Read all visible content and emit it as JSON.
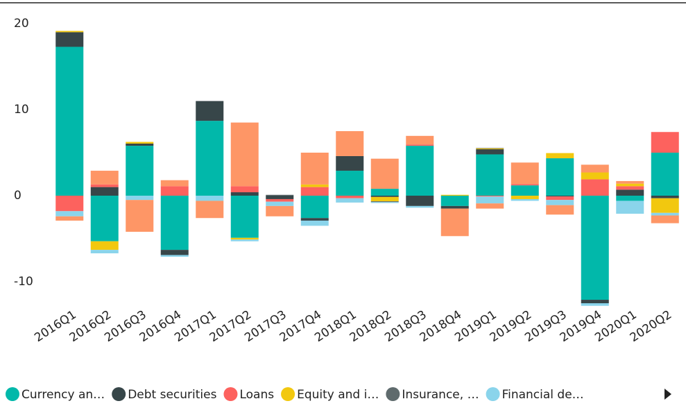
{
  "chart_data": {
    "type": "stacked_bar",
    "categories": [
      "2016Q1",
      "2016Q2",
      "2016Q3",
      "2016Q4",
      "2017Q1",
      "2017Q2",
      "2017Q3",
      "2017Q4",
      "2018Q1",
      "2018Q2",
      "2018Q3",
      "2018Q4",
      "2019Q1",
      "2019Q2",
      "2019Q3",
      "2019Q4",
      "2020Q1",
      "2020Q2"
    ],
    "series": [
      {
        "name": "Currency an…",
        "color": "#01b8aa",
        "values": [
          17.3,
          -5.3,
          5.8,
          -6.3,
          8.7,
          -4.9,
          0,
          -2.6,
          2.9,
          0.8,
          5.8,
          -1.2,
          4.8,
          1.2,
          4.35,
          -12.1,
          -0.6,
          5.0
        ]
      },
      {
        "name": "Debt securities",
        "color": "#374649",
        "values": [
          1.7,
          1.0,
          0.25,
          -0.6,
          2.3,
          0.4,
          -0.4,
          -0.3,
          1.7,
          -0.15,
          -1.2,
          -0.3,
          0.6,
          0,
          -0.1,
          -0.4,
          0.7,
          -0.3
        ]
      },
      {
        "name": "Loans",
        "color": "#fd625e",
        "values": [
          -1.8,
          0.3,
          0,
          1.1,
          0,
          0.7,
          -0.3,
          1.0,
          -0.3,
          0,
          0.15,
          0,
          -0.1,
          0.15,
          -0.4,
          1.9,
          0.4,
          2.4
        ]
      },
      {
        "name": "Equity and i…",
        "color": "#f2c80f",
        "values": [
          0.15,
          -1.0,
          0.2,
          0,
          0,
          -0.2,
          0,
          0.3,
          0,
          -0.5,
          0,
          0.1,
          0.1,
          -0.4,
          0.6,
          0.8,
          0.3,
          -1.7
        ]
      },
      {
        "name": "Insurance, …",
        "color": "#5f6b6d",
        "values": [
          0,
          0,
          0,
          0,
          0,
          0,
          0.1,
          0,
          0,
          -0.1,
          0,
          0,
          0.05,
          0,
          0,
          0,
          0,
          0
        ]
      },
      {
        "name": "Financial de…",
        "color": "#8ad4eb",
        "values": [
          -0.6,
          -0.4,
          -0.5,
          -0.2,
          -0.6,
          -0.2,
          -0.5,
          -0.6,
          -0.5,
          -0.1,
          -0.2,
          0,
          -0.8,
          -0.2,
          -0.6,
          -0.3,
          -1.5,
          -0.3
        ]
      },
      {
        "color": "#fe9666",
        "values": [
          -0.5,
          1.6,
          -3.7,
          0.7,
          -2.0,
          7.4,
          -1.2,
          3.7,
          2.9,
          3.5,
          1.0,
          -3.2,
          -0.6,
          2.5,
          -1.1,
          0.9,
          0.3,
          -0.9
        ]
      }
    ],
    "ylim": [
      -14,
      22
    ],
    "yticks": [
      20,
      10,
      0,
      -10
    ],
    "grid": false
  }
}
